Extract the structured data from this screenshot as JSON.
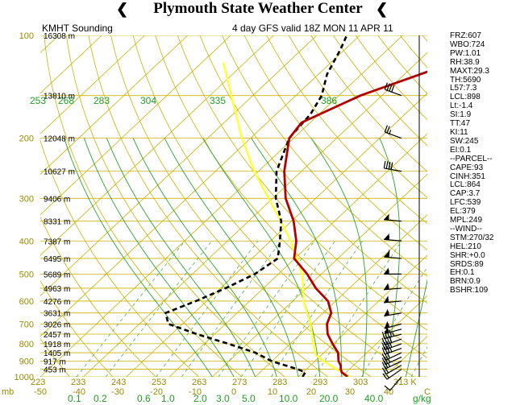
{
  "header": {
    "title": "Plymouth State Weather Center",
    "flag_glyph": "❮"
  },
  "station_label": "KMHT Sounding",
  "model_label": "4 day GFS valid 18Z MON 11 APR 11",
  "indices": [
    "FRZ:607",
    "WBO:724",
    "PW:1.01",
    "RH:38.9",
    "MAXT:29.3",
    "TH:5690",
    "L57:7.3",
    "LCL:898",
    "Lt:-1.4",
    "SI:1.9",
    "TT:47",
    "KI:11",
    "SW:245",
    "EI:0.1",
    "--PARCEL--",
    "CAPE:93",
    "CINH:351",
    "LCL:864",
    "CAP:3.7",
    "LFC:539",
    "EL:379",
    "MPL:249",
    "--WIND--",
    "STM:270/32",
    "HEL:210",
    "SHR:+0.0",
    "SRDS:89",
    "EH:0.1",
    "BRN:0.9",
    "BSHR:109"
  ],
  "chart_data": {
    "type": "skew-t",
    "pressure_axis": {
      "unit": "mb",
      "ticks": [
        "100",
        "200",
        "300",
        "400",
        "500",
        "600",
        "700",
        "800",
        "900",
        "1000"
      ],
      "range": [
        100,
        1000
      ]
    },
    "temperature_axis": {
      "ticks": [
        "-50",
        "-40",
        "-30",
        "-20",
        "-10",
        "0",
        "10",
        "20",
        "30",
        "40",
        "C"
      ],
      "range": [
        -50,
        40
      ]
    },
    "height_labels": [
      {
        "p": 100,
        "label": "16308 m"
      },
      {
        "p": 150,
        "label": "13810 m"
      },
      {
        "p": 200,
        "label": "12048 m"
      },
      {
        "p": 250,
        "label": "10627 m"
      },
      {
        "p": 300,
        "label": "9406 m"
      },
      {
        "p": 350,
        "label": "8331 m"
      },
      {
        "p": 400,
        "label": "7387 m"
      },
      {
        "p": 450,
        "label": "6495 m"
      },
      {
        "p": 500,
        "label": "5689 m"
      },
      {
        "p": 550,
        "label": "4963 m"
      },
      {
        "p": 600,
        "label": "4276 m"
      },
      {
        "p": 650,
        "label": "3631 m"
      },
      {
        "p": 700,
        "label": "3026 m"
      },
      {
        "p": 750,
        "label": "2457 m"
      },
      {
        "p": 800,
        "label": "1918 m"
      },
      {
        "p": 850,
        "label": "1405 m"
      },
      {
        "p": 900,
        "label": "917 m"
      },
      {
        "p": 950,
        "label": "453 m"
      }
    ],
    "theta_bottom_labels": [
      "223",
      "233",
      "243",
      "253",
      "263",
      "273",
      "283",
      "293",
      "303",
      "313 K"
    ],
    "theta_top_labels": [
      "253",
      "268",
      "283",
      "304",
      "335",
      "386"
    ],
    "mixing_ratio_labels": [
      "0.1",
      "0.2",
      "0.6",
      "1.0",
      "2.0",
      "3.0",
      "5.0",
      "10.0",
      "20.0",
      "40.0",
      "g/kg"
    ],
    "temperature_profile": [
      {
        "p": 1000,
        "t": 21.5
      },
      {
        "p": 970,
        "t": 19
      },
      {
        "p": 950,
        "t": 18
      },
      {
        "p": 925,
        "t": 17
      },
      {
        "p": 900,
        "t": 15.5
      },
      {
        "p": 850,
        "t": 13.3
      },
      {
        "p": 800,
        "t": 9.8
      },
      {
        "p": 750,
        "t": 6.3
      },
      {
        "p": 700,
        "t": 3.6
      },
      {
        "p": 650,
        "t": 1.9
      },
      {
        "p": 600,
        "t": -1.8
      },
      {
        "p": 550,
        "t": -7.8
      },
      {
        "p": 500,
        "t": -13.3
      },
      {
        "p": 450,
        "t": -20.2
      },
      {
        "p": 400,
        "t": -24
      },
      {
        "p": 350,
        "t": -29.5
      },
      {
        "p": 300,
        "t": -37
      },
      {
        "p": 250,
        "t": -44
      },
      {
        "p": 200,
        "t": -51
      },
      {
        "p": 180,
        "t": -52
      },
      {
        "p": 150,
        "t": -45
      },
      {
        "p": 120,
        "t": -31.5
      },
      {
        "p": 100,
        "t": -16.5
      }
    ],
    "dewpoint_profile": [
      {
        "p": 1000,
        "t": 11
      },
      {
        "p": 970,
        "t": 10.5
      },
      {
        "p": 950,
        "t": 8
      },
      {
        "p": 900,
        "t": 0
      },
      {
        "p": 850,
        "t": -5.9
      },
      {
        "p": 800,
        "t": -14.5
      },
      {
        "p": 750,
        "t": -24.1
      },
      {
        "p": 700,
        "t": -33.3
      },
      {
        "p": 650,
        "t": -36.6
      },
      {
        "p": 600,
        "t": -32.5
      },
      {
        "p": 550,
        "t": -28.8
      },
      {
        "p": 500,
        "t": -25.5
      },
      {
        "p": 450,
        "t": -24
      },
      {
        "p": 400,
        "t": -27.8
      },
      {
        "p": 350,
        "t": -32.4
      },
      {
        "p": 300,
        "t": -39.3
      },
      {
        "p": 250,
        "t": -45.8
      },
      {
        "p": 200,
        "t": -51
      },
      {
        "p": 170,
        "t": -52
      },
      {
        "p": 150,
        "t": -54
      },
      {
        "p": 130,
        "t": -58
      },
      {
        "p": 110,
        "t": -61
      },
      {
        "p": 100,
        "t": -63
      }
    ],
    "parcel_profile": [
      {
        "p": 1000,
        "t": 22
      },
      {
        "p": 950,
        "t": 17
      },
      {
        "p": 900,
        "t": 12
      },
      {
        "p": 864,
        "t": 8.7
      },
      {
        "p": 800,
        "t": 5.3
      },
      {
        "p": 700,
        "t": -0.2
      },
      {
        "p": 600,
        "t": -7.5
      },
      {
        "p": 539,
        "t": -11.5
      },
      {
        "p": 500,
        "t": -14.5
      },
      {
        "p": 450,
        "t": -19.5
      },
      {
        "p": 400,
        "t": -25.3
      },
      {
        "p": 350,
        "t": -32.5
      },
      {
        "p": 300,
        "t": -41
      },
      {
        "p": 250,
        "t": -51
      },
      {
        "p": 200,
        "t": -62
      },
      {
        "p": 150,
        "t": -75
      },
      {
        "p": 120,
        "t": -85
      }
    ],
    "wind_barbs": [
      {
        "p": 1000,
        "dir": 220,
        "spd": 10
      },
      {
        "p": 950,
        "dir": 235,
        "spd": 15
      },
      {
        "p": 925,
        "dir": 240,
        "spd": 20
      },
      {
        "p": 900,
        "dir": 245,
        "spd": 25
      },
      {
        "p": 875,
        "dir": 245,
        "spd": 25
      },
      {
        "p": 850,
        "dir": 245,
        "spd": 30
      },
      {
        "p": 825,
        "dir": 250,
        "spd": 35
      },
      {
        "p": 800,
        "dir": 250,
        "spd": 35
      },
      {
        "p": 775,
        "dir": 250,
        "spd": 40
      },
      {
        "p": 750,
        "dir": 255,
        "spd": 45
      },
      {
        "p": 725,
        "dir": 255,
        "spd": 50
      },
      {
        "p": 700,
        "dir": 255,
        "spd": 55
      },
      {
        "p": 650,
        "dir": 260,
        "spd": 55
      },
      {
        "p": 600,
        "dir": 265,
        "spd": 50
      },
      {
        "p": 550,
        "dir": 265,
        "spd": 55
      },
      {
        "p": 500,
        "dir": 270,
        "spd": 55
      },
      {
        "p": 450,
        "dir": 275,
        "spd": 60
      },
      {
        "p": 400,
        "dir": 275,
        "spd": 55
      },
      {
        "p": 350,
        "dir": 275,
        "spd": 50
      },
      {
        "p": 250,
        "dir": 280,
        "spd": 40
      },
      {
        "p": 200,
        "dir": 290,
        "spd": 25
      },
      {
        "p": 150,
        "dir": 290,
        "spd": 40
      }
    ]
  },
  "colors": {
    "isobar": "#c8b400",
    "dry_adiabat": "#c8b400",
    "moist_adiabat": "#2ca02c",
    "mixing_ratio": "#4caf50",
    "temperature": "#b00000",
    "dewpoint": "#000000",
    "parcel": "#ffff33",
    "label_olive": "#9a8a00",
    "label_green": "#1f9e1f"
  }
}
